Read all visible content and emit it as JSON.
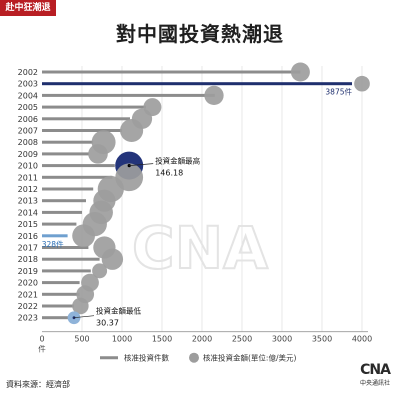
{
  "tag": "赴中狂潮退",
  "title": "對中國投資熱潮退",
  "source": "資料來源：經濟部",
  "logo": {
    "mark": "CNA",
    "name": "中央通訊社"
  },
  "colors": {
    "bar": "#8c8c8c",
    "bar_highlight": "#1f2f6e",
    "bar_low": "#6fa0cf",
    "bubble": "#9d9d9d",
    "bubble_highlight": "#23347a",
    "bubble_low": "#8fb3d9",
    "tag_bg": "#b81e23"
  },
  "chart_data": {
    "type": "bar",
    "orientation": "horizontal",
    "title": "對中國投資熱潮退",
    "categories": [
      "2002",
      "2003",
      "2004",
      "2005",
      "2006",
      "2007",
      "2008",
      "2009",
      "2010",
      "2011",
      "2012",
      "2013",
      "2014",
      "2015",
      "2016",
      "2017",
      "2018",
      "2019",
      "2020",
      "2021",
      "2022",
      "2023"
    ],
    "series": [
      {
        "name": "核准投資件數",
        "marker": "bar",
        "values": [
          3230,
          3875,
          2160,
          1300,
          1100,
          1000,
          640,
          590,
          910,
          880,
          640,
          550,
          500,
          430,
          320,
          580,
          720,
          610,
          470,
          470,
          400,
          328
        ]
      },
      {
        "name": "核准投資金額(單位:億/美元)",
        "marker": "bubble",
        "values": [
          67.2,
          45.9,
          69.4,
          60.1,
          76.4,
          99.7,
          106.9,
          71.4,
          146.18,
          143.8,
          127.9,
          91.9,
          102.8,
          109.7,
          96.7,
          92.5,
          85.0,
          41.7,
          59.1,
          58.6,
          50.5,
          30.37
        ]
      }
    ],
    "bubble_x": [
      3230,
      4000,
      2150,
      1380,
      1250,
      1120,
      770,
      700,
      1090,
      1090,
      860,
      780,
      740,
      660,
      520,
      780,
      880,
      720,
      600,
      540,
      480,
      400
    ],
    "xaxis": {
      "ticks": [
        0,
        500,
        1000,
        1500,
        2000,
        2500,
        3000,
        3500,
        4000
      ],
      "unit": "件",
      "xlim": [
        0,
        4000
      ]
    },
    "annotations": {
      "max_count": "3875件",
      "min_count": "328件",
      "max_amount_label": "投資金額最高",
      "max_amount_value": "146.18",
      "min_amount_label": "投資金額最低",
      "min_amount_value": "30.37"
    },
    "legend": {
      "position": "bottom",
      "items": [
        "核准投資件數",
        "核准投資金額(單位:億/美元)"
      ]
    },
    "grid": true
  }
}
